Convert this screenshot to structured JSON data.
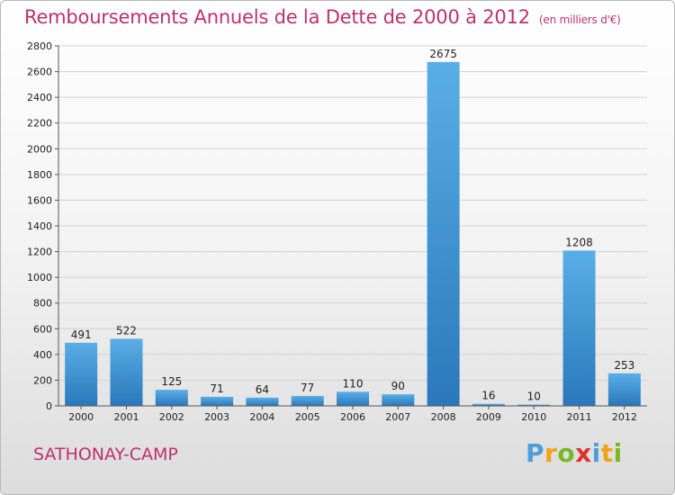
{
  "title": "Remboursements Annuels de la Dette de 2000 à 2012",
  "subtitle": "(en milliers d'€)",
  "city": "SATHONAY-CAMP",
  "logo": {
    "letters": [
      "P",
      "r",
      "o",
      "x",
      "i",
      "t",
      "i"
    ]
  },
  "colors": {
    "title": "#c0306a",
    "bar_top": "#5aaee6",
    "bar_bottom": "#2a78bb"
  },
  "chart_data": {
    "type": "bar",
    "categories": [
      "2000",
      "2001",
      "2002",
      "2003",
      "2004",
      "2005",
      "2006",
      "2007",
      "2008",
      "2009",
      "2010",
      "2011",
      "2012"
    ],
    "values": [
      491,
      522,
      125,
      71,
      64,
      77,
      110,
      90,
      2675,
      16,
      10,
      1208,
      253
    ],
    "ylim": [
      0,
      2800
    ],
    "yticks": [
      0,
      200,
      400,
      600,
      800,
      1000,
      1200,
      1400,
      1600,
      1800,
      2000,
      2200,
      2400,
      2600,
      2800
    ],
    "grid": true,
    "data_labels": true
  }
}
